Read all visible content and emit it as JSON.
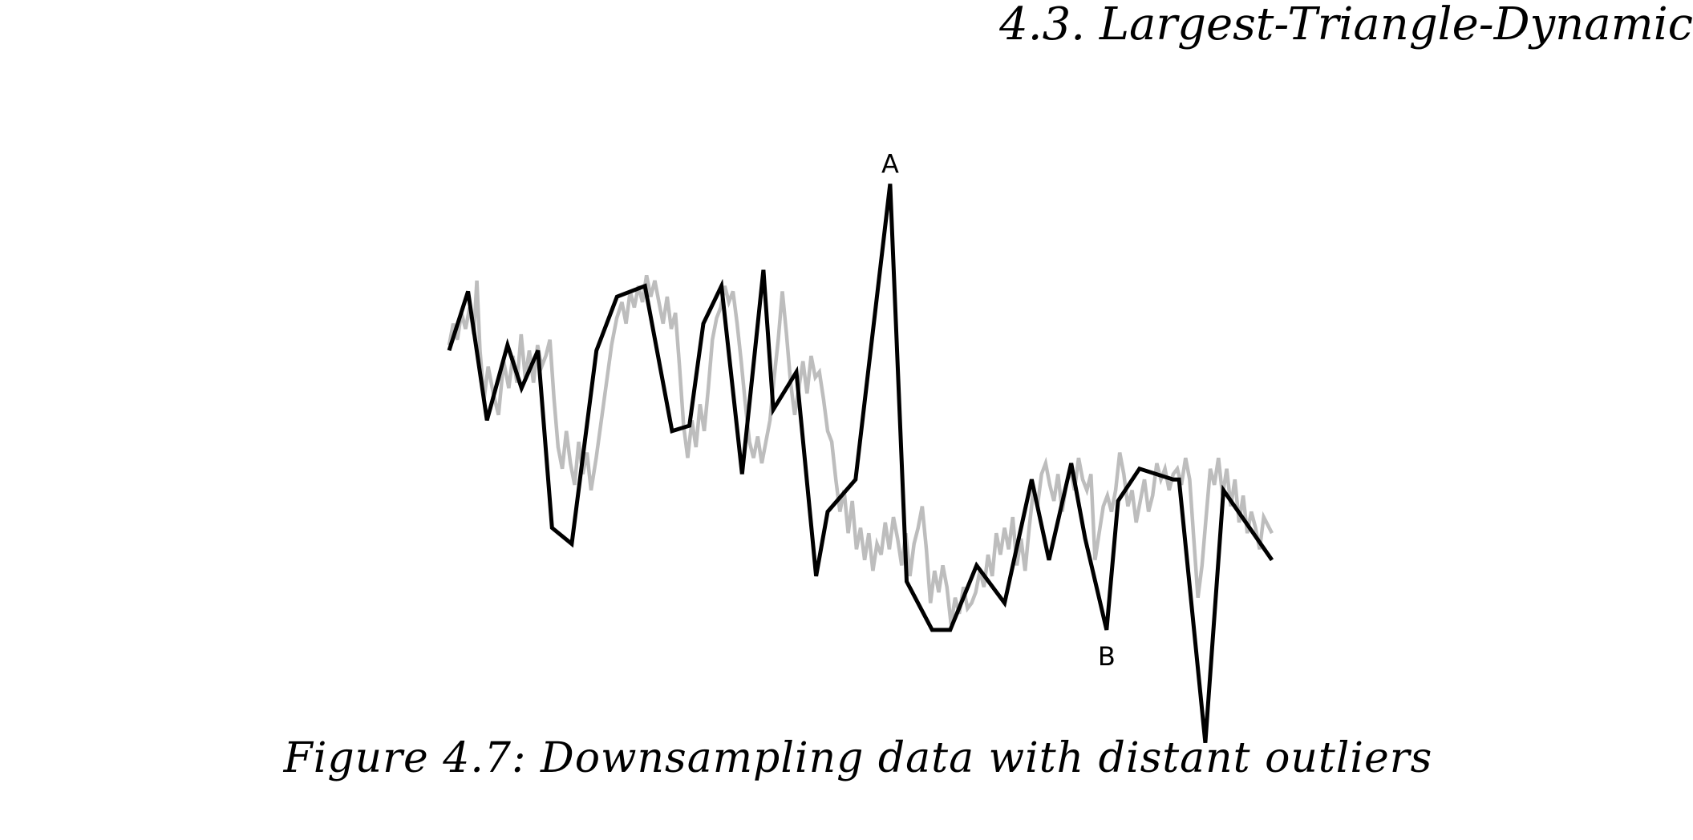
{
  "header": {
    "running_title": "4.3.  Largest-Triangle-Dynamic"
  },
  "figure": {
    "caption": "Figure 4.7: Downsampling data with distant outliers"
  },
  "chart_data": {
    "type": "line",
    "title": "",
    "xlabel": "",
    "ylabel": "",
    "axes_visible": false,
    "grid": false,
    "x_range": [
      0,
      100
    ],
    "y_range": [
      -4.4,
      4.4
    ],
    "series": [
      {
        "role": "original",
        "color": "#bdbdbd",
        "points": [
          [
            0,
            1.2
          ],
          [
            0.4,
            1.6
          ],
          [
            0.8,
            1.3
          ],
          [
            1.2,
            1.8
          ],
          [
            1.6,
            1.5
          ],
          [
            2,
            1.9
          ],
          [
            2.4,
            1.4
          ],
          [
            2.7,
            2.4
          ],
          [
            3.0,
            1.1
          ],
          [
            3.4,
            0.2
          ],
          [
            3.8,
            0.8
          ],
          [
            4.3,
            0.3
          ],
          [
            4.8,
            -0.1
          ],
          [
            5.3,
            0.9
          ],
          [
            5.8,
            0.4
          ],
          [
            6.2,
            1.0
          ],
          [
            6.6,
            0.5
          ],
          [
            7.0,
            1.4
          ],
          [
            7.4,
            0.6
          ],
          [
            7.8,
            1.1
          ],
          [
            8.2,
            0.5
          ],
          [
            8.6,
            1.2
          ],
          [
            9.0,
            0.8
          ],
          [
            9.4,
            1.0
          ],
          [
            9.8,
            1.3
          ],
          [
            10.2,
            0.2
          ],
          [
            10.6,
            -0.7
          ],
          [
            11.0,
            -1.1
          ],
          [
            11.4,
            -0.4
          ],
          [
            11.8,
            -1.0
          ],
          [
            12.2,
            -1.4
          ],
          [
            12.6,
            -0.6
          ],
          [
            13.0,
            -1.2
          ],
          [
            13.4,
            -0.8
          ],
          [
            13.8,
            -1.5
          ],
          [
            14.3,
            -0.9
          ],
          [
            14.8,
            -0.2
          ],
          [
            15.3,
            0.5
          ],
          [
            15.8,
            1.2
          ],
          [
            16.3,
            1.7
          ],
          [
            16.8,
            2.0
          ],
          [
            17.2,
            1.6
          ],
          [
            17.6,
            2.2
          ],
          [
            18.0,
            1.9
          ],
          [
            18.4,
            2.3
          ],
          [
            18.8,
            2.0
          ],
          [
            19.2,
            2.5
          ],
          [
            19.6,
            2.1
          ],
          [
            20.0,
            2.4
          ],
          [
            20.4,
            2.0
          ],
          [
            20.8,
            1.6
          ],
          [
            21.2,
            2.1
          ],
          [
            21.6,
            1.5
          ],
          [
            22.0,
            1.8
          ],
          [
            22.4,
            0.8
          ],
          [
            22.8,
            -0.3
          ],
          [
            23.2,
            -0.9
          ],
          [
            23.6,
            -0.2
          ],
          [
            24.0,
            -0.7
          ],
          [
            24.4,
            0.1
          ],
          [
            24.8,
            -0.4
          ],
          [
            25.2,
            0.4
          ],
          [
            25.6,
            1.3
          ],
          [
            26.0,
            1.7
          ],
          [
            26.4,
            1.9
          ],
          [
            26.8,
            2.3
          ],
          [
            27.2,
            2.0
          ],
          [
            27.6,
            2.2
          ],
          [
            28.0,
            1.6
          ],
          [
            28.4,
            0.9
          ],
          [
            28.8,
            0.1
          ],
          [
            29.2,
            -0.6
          ],
          [
            29.6,
            -0.9
          ],
          [
            30.0,
            -0.5
          ],
          [
            30.4,
            -1.0
          ],
          [
            30.8,
            -0.6
          ],
          [
            31.2,
            -0.2
          ],
          [
            31.6,
            0.6
          ],
          [
            32.0,
            1.3
          ],
          [
            32.4,
            2.2
          ],
          [
            32.8,
            1.4
          ],
          [
            33.2,
            0.5
          ],
          [
            33.6,
            -0.1
          ],
          [
            34.0,
            0.4
          ],
          [
            34.4,
            0.9
          ],
          [
            34.8,
            0.3
          ],
          [
            35.2,
            1.0
          ],
          [
            35.6,
            0.6
          ],
          [
            36.0,
            0.7
          ],
          [
            36.4,
            0.2
          ],
          [
            36.8,
            -0.4
          ],
          [
            37.2,
            -0.6
          ],
          [
            37.6,
            -1.3
          ],
          [
            38.0,
            -1.9
          ],
          [
            38.4,
            -1.5
          ],
          [
            38.8,
            -2.3
          ],
          [
            39.2,
            -1.7
          ],
          [
            39.6,
            -2.6
          ],
          [
            40.0,
            -2.2
          ],
          [
            40.4,
            -2.8
          ],
          [
            40.8,
            -2.3
          ],
          [
            41.2,
            -3.0
          ],
          [
            41.6,
            -2.5
          ],
          [
            42.0,
            -2.7
          ],
          [
            42.4,
            -2.1
          ],
          [
            42.8,
            -2.6
          ],
          [
            43.2,
            -2.0
          ],
          [
            43.6,
            -2.4
          ],
          [
            44.0,
            -2.9
          ],
          [
            44.4,
            -2.3
          ],
          [
            44.8,
            -3.1
          ],
          [
            45.2,
            -2.5
          ],
          [
            45.6,
            -2.2
          ],
          [
            46.0,
            -1.8
          ],
          [
            46.4,
            -2.6
          ],
          [
            46.8,
            -3.6
          ],
          [
            47.2,
            -3.0
          ],
          [
            47.6,
            -3.4
          ],
          [
            48.0,
            -2.9
          ],
          [
            48.4,
            -3.3
          ],
          [
            48.8,
            -4.0
          ],
          [
            49.2,
            -3.5
          ],
          [
            49.6,
            -3.8
          ],
          [
            50.0,
            -3.3
          ],
          [
            50.4,
            -3.7
          ],
          [
            50.8,
            -3.6
          ],
          [
            51.2,
            -3.4
          ],
          [
            51.6,
            -3.0
          ],
          [
            52.0,
            -3.3
          ],
          [
            52.4,
            -2.7
          ],
          [
            52.8,
            -3.1
          ],
          [
            53.2,
            -2.3
          ],
          [
            53.6,
            -2.7
          ],
          [
            54.0,
            -2.2
          ],
          [
            54.4,
            -2.6
          ],
          [
            54.8,
            -2.0
          ],
          [
            55.2,
            -2.9
          ],
          [
            55.6,
            -2.4
          ],
          [
            56.0,
            -3.0
          ],
          [
            56.4,
            -2.2
          ],
          [
            56.8,
            -1.5
          ],
          [
            57.2,
            -1.8
          ],
          [
            57.6,
            -1.2
          ],
          [
            58.0,
            -1.0
          ],
          [
            58.4,
            -1.4
          ],
          [
            58.8,
            -1.7
          ],
          [
            59.2,
            -1.2
          ],
          [
            59.6,
            -1.9
          ],
          [
            60.0,
            -1.4
          ],
          [
            60.4,
            -1.1
          ],
          [
            60.8,
            -1.5
          ],
          [
            61.2,
            -0.9
          ],
          [
            61.6,
            -1.3
          ],
          [
            62.0,
            -1.5
          ],
          [
            62.4,
            -1.2
          ],
          [
            62.8,
            -2.8
          ],
          [
            63.2,
            -2.3
          ],
          [
            63.6,
            -1.8
          ],
          [
            64.0,
            -1.6
          ],
          [
            64.4,
            -1.9
          ],
          [
            64.8,
            -1.5
          ],
          [
            65.2,
            -0.8
          ],
          [
            65.6,
            -1.2
          ],
          [
            66.0,
            -1.8
          ],
          [
            66.4,
            -1.5
          ],
          [
            66.8,
            -2.1
          ],
          [
            67.2,
            -1.7
          ],
          [
            67.6,
            -1.3
          ],
          [
            68.0,
            -1.9
          ],
          [
            68.4,
            -1.6
          ],
          [
            68.8,
            -1.0
          ],
          [
            69.2,
            -1.3
          ],
          [
            69.6,
            -1.1
          ],
          [
            70.0,
            -1.5
          ],
          [
            70.4,
            -1.2
          ],
          [
            70.8,
            -1.1
          ],
          [
            71.2,
            -1.4
          ],
          [
            71.6,
            -0.9
          ],
          [
            72.0,
            -1.3
          ],
          [
            72.4,
            -2.4
          ],
          [
            72.8,
            -3.5
          ],
          [
            73.2,
            -2.9
          ],
          [
            73.6,
            -2.0
          ],
          [
            74.0,
            -1.1
          ],
          [
            74.4,
            -1.4
          ],
          [
            74.8,
            -0.9
          ],
          [
            75.2,
            -1.6
          ],
          [
            75.6,
            -1.1
          ],
          [
            76.0,
            -1.8
          ],
          [
            76.4,
            -1.3
          ],
          [
            76.8,
            -2.1
          ],
          [
            77.2,
            -1.6
          ],
          [
            77.6,
            -2.3
          ],
          [
            78.0,
            -1.9
          ],
          [
            78.4,
            -2.2
          ],
          [
            78.8,
            -2.6
          ],
          [
            79.2,
            -2.0
          ],
          [
            80.0,
            -2.3
          ]
        ]
      },
      {
        "role": "downsampled",
        "color": "#000000",
        "points": [
          [
            0,
            1.1
          ],
          [
            2.3,
            2.2
          ],
          [
            4.6,
            -0.2
          ],
          [
            7.1,
            1.2
          ],
          [
            8.8,
            0.4
          ],
          [
            10.8,
            1.1
          ],
          [
            12.5,
            -2.2
          ],
          [
            14.9,
            -2.5
          ],
          [
            17.9,
            1.1
          ],
          [
            20.4,
            2.1
          ],
          [
            23.8,
            2.3
          ],
          [
            27.1,
            -0.4
          ],
          [
            29.2,
            -0.3
          ],
          [
            30.9,
            1.6
          ],
          [
            33.1,
            2.3
          ],
          [
            35.6,
            -1.2
          ],
          [
            38.2,
            2.6
          ],
          [
            39.4,
            0.0
          ],
          [
            42.2,
            0.7
          ],
          [
            44.6,
            -3.1
          ],
          [
            46.0,
            -1.9
          ],
          [
            49.4,
            -1.3
          ],
          [
            53.6,
            4.2
          ],
          [
            55.6,
            -3.2
          ],
          [
            58.7,
            -4.1
          ],
          [
            60.9,
            -4.1
          ],
          [
            64.1,
            -2.9
          ],
          [
            67.5,
            -3.6
          ],
          [
            70.8,
            -1.3
          ],
          [
            72.9,
            -2.8
          ],
          [
            75.6,
            -1.0
          ],
          [
            77.3,
            -2.4
          ],
          [
            79.9,
            -4.1
          ],
          [
            81.3,
            -1.7
          ],
          [
            83.9,
            -1.1
          ],
          [
            88.0,
            -1.3
          ],
          [
            88.7,
            -1.3
          ],
          [
            91.9,
            -6.2
          ],
          [
            94.1,
            -1.5
          ],
          [
            100.0,
            -2.8
          ]
        ]
      }
    ],
    "annotations": [
      {
        "text": "A",
        "x": 53.6,
        "y": 4.2,
        "placement": "above"
      },
      {
        "text": "B",
        "x": 79.9,
        "y": -4.1,
        "placement": "below"
      }
    ]
  }
}
